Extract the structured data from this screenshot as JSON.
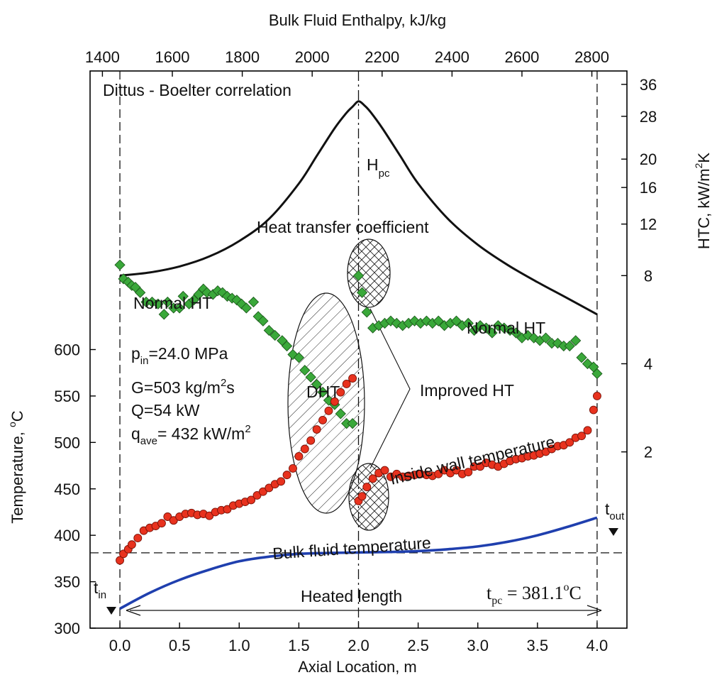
{
  "chart_data": {
    "type": "scatter",
    "x_axis": {
      "title": "Axial Location, m",
      "range": [
        -0.25,
        4.25
      ],
      "ticks": [
        0.0,
        0.5,
        1.0,
        1.5,
        2.0,
        2.5,
        3.0,
        3.5,
        4.0
      ],
      "tick_labels": [
        "0.0",
        "0.5",
        "1.0",
        "1.5",
        "2.0",
        "2.5",
        "3.0",
        "3.5",
        "4.0"
      ]
    },
    "top_axis": {
      "title": "Bulk Fluid Enthalpy, kJ/kg",
      "ticks": [
        1400,
        1600,
        1800,
        2000,
        2200,
        2400,
        2600,
        2800
      ],
      "tick_labels": [
        "1400",
        "1600",
        "1800",
        "2000",
        "2200",
        "2400",
        "2600",
        "2800"
      ],
      "enthalpy_at_x0": 1450,
      "enthalpy_at_x4": 2815
    },
    "y_left": {
      "title_main": "Temperature, ",
      "title_sup": "o",
      "title_unit": "C",
      "range": [
        300,
        900
      ],
      "ticks": [
        300,
        350,
        400,
        450,
        500,
        550,
        600
      ],
      "tick_labels": [
        "300",
        "350",
        "400",
        "450",
        "500",
        "550",
        "600"
      ]
    },
    "y_right": {
      "title_main": "HTC, kW/m",
      "title_sup": "2",
      "title_unit": "K",
      "scale": "log",
      "range": [
        0.5,
        40
      ],
      "ticks": [
        2,
        4,
        8,
        12,
        16,
        20,
        28,
        36
      ],
      "tick_labels": [
        "2",
        "4",
        "8",
        "12",
        "16",
        "20",
        "28",
        "36"
      ]
    },
    "series": [
      {
        "kind": "htc_points",
        "axis": "right",
        "color": "#3aa83a",
        "x": [
          0.0,
          0.03,
          0.07,
          0.1,
          0.13,
          0.17,
          0.22,
          0.27,
          0.32,
          0.37,
          0.4,
          0.45,
          0.5,
          0.53,
          0.58,
          0.62,
          0.66,
          0.7,
          0.73,
          0.78,
          0.82,
          0.86,
          0.9,
          0.94,
          0.98,
          1.02,
          1.06,
          1.12,
          1.16,
          1.2,
          1.25,
          1.3,
          1.36,
          1.4,
          1.45,
          1.5,
          1.55,
          1.6,
          1.65,
          1.7,
          1.75,
          1.8,
          1.85,
          1.9,
          1.95,
          2.0,
          2.03,
          2.07,
          2.12,
          2.17,
          2.22,
          2.27,
          2.32,
          2.37,
          2.42,
          2.47,
          2.52,
          2.57,
          2.62,
          2.67,
          2.72,
          2.77,
          2.82,
          2.87,
          2.92,
          2.97,
          3.02,
          3.07,
          3.12,
          3.17,
          3.22,
          3.27,
          3.32,
          3.37,
          3.42,
          3.47,
          3.52,
          3.57,
          3.62,
          3.67,
          3.72,
          3.77,
          3.82,
          3.87,
          3.92,
          3.97,
          4.0
        ],
        "y": [
          8.7,
          7.8,
          7.6,
          7.4,
          7.3,
          7.0,
          6.5,
          6.5,
          6.4,
          5.9,
          6.5,
          6.2,
          6.2,
          6.8,
          6.4,
          6.6,
          6.9,
          7.2,
          7.0,
          6.9,
          7.1,
          7.0,
          6.8,
          6.7,
          6.6,
          6.4,
          6.2,
          6.5,
          5.8,
          5.6,
          5.2,
          5.0,
          4.8,
          4.6,
          4.3,
          4.2,
          3.8,
          3.6,
          3.4,
          3.2,
          3.0,
          2.9,
          2.7,
          2.5,
          2.5,
          8.0,
          7.0,
          6.0,
          5.3,
          5.4,
          5.5,
          5.6,
          5.5,
          5.4,
          5.5,
          5.6,
          5.5,
          5.6,
          5.5,
          5.6,
          5.4,
          5.5,
          5.6,
          5.4,
          5.5,
          5.2,
          5.4,
          5.3,
          5.1,
          5.4,
          5.3,
          5.2,
          5.1,
          4.9,
          5.0,
          4.9,
          4.8,
          4.9,
          4.7,
          4.7,
          4.6,
          4.6,
          4.8,
          4.2,
          4.0,
          3.9,
          3.7
        ]
      },
      {
        "kind": "wall_temperature_points",
        "axis": "left",
        "color": "#e8321e",
        "x": [
          0.0,
          0.03,
          0.07,
          0.1,
          0.15,
          0.2,
          0.25,
          0.3,
          0.35,
          0.4,
          0.45,
          0.5,
          0.55,
          0.6,
          0.65,
          0.7,
          0.75,
          0.8,
          0.85,
          0.9,
          0.95,
          1.0,
          1.05,
          1.1,
          1.15,
          1.2,
          1.25,
          1.3,
          1.35,
          1.4,
          1.45,
          1.5,
          1.55,
          1.6,
          1.65,
          1.7,
          1.75,
          1.8,
          1.85,
          1.9,
          1.95,
          2.0,
          2.03,
          2.07,
          2.12,
          2.17,
          2.22,
          2.27,
          2.32,
          2.37,
          2.42,
          2.47,
          2.52,
          2.57,
          2.62,
          2.67,
          2.72,
          2.77,
          2.82,
          2.87,
          2.92,
          2.97,
          3.02,
          3.07,
          3.12,
          3.17,
          3.22,
          3.27,
          3.32,
          3.37,
          3.42,
          3.47,
          3.52,
          3.57,
          3.62,
          3.67,
          3.72,
          3.77,
          3.82,
          3.87,
          3.92,
          3.97,
          4.0
        ],
        "y": [
          373,
          380,
          385,
          390,
          397,
          405,
          408,
          410,
          413,
          420,
          416,
          420,
          423,
          424,
          422,
          423,
          421,
          425,
          427,
          428,
          432,
          434,
          436,
          438,
          443,
          447,
          451,
          455,
          458,
          465,
          472,
          485,
          493,
          502,
          514,
          524,
          534,
          544,
          554,
          563,
          569,
          437,
          442,
          452,
          461,
          467,
          470,
          463,
          466,
          463,
          464,
          465,
          466,
          465,
          464,
          466,
          470,
          467,
          470,
          466,
          468,
          474,
          474,
          478,
          476,
          474,
          477,
          480,
          482,
          483,
          485,
          486,
          488,
          490,
          493,
          496,
          497,
          500,
          505,
          507,
          513,
          535,
          550
        ]
      },
      {
        "kind": "bulk_fluid_temperature_line",
        "axis": "left",
        "color": "#1f3fae",
        "x": [
          0.0,
          0.25,
          0.5,
          0.75,
          1.0,
          1.25,
          1.5,
          1.75,
          2.0,
          2.25,
          2.5,
          2.75,
          3.0,
          3.25,
          3.5,
          3.75,
          4.0
        ],
        "y": [
          321,
          338,
          352,
          363,
          372,
          377,
          380,
          381,
          381.5,
          382,
          383,
          385,
          388,
          393,
          400,
          409,
          419
        ]
      },
      {
        "kind": "dittus_boelter_htc_line",
        "axis": "right",
        "color": "#111111",
        "x": [
          0.0,
          0.25,
          0.5,
          0.75,
          1.0,
          1.25,
          1.5,
          1.65,
          1.8,
          1.9,
          1.95,
          2.0,
          2.05,
          2.1,
          2.2,
          2.35,
          2.5,
          2.75,
          3.0,
          3.25,
          3.5,
          3.75,
          4.0
        ],
        "y": [
          8.0,
          8.2,
          8.6,
          9.3,
          10.5,
          12.5,
          16.5,
          20.5,
          25.5,
          28.8,
          30.2,
          31.5,
          30.5,
          29.0,
          25.5,
          20.5,
          16.5,
          12.5,
          10.2,
          8.7,
          7.6,
          6.7,
          5.9
        ]
      }
    ],
    "reference_lines": {
      "vertical_dashed_x": [
        0.0,
        4.0
      ],
      "vertical_dashdot_x": 2.0,
      "horizontal_dashed_y": 381.1
    },
    "annotations": {
      "dittus": "Dittus - Boelter correlation",
      "hpc_main": "H",
      "hpc_sub": "pc",
      "htc_label": "Heat transfer coefficient",
      "normal_ht_left": "Normal HT",
      "normal_ht_right": "Normal HT",
      "dht": "DHT",
      "improved_ht": "Improved HT",
      "pin_main": "p",
      "pin_sub": "in",
      "pin_value": "=24.0 MPa",
      "g_main": "G=503 kg/m",
      "g_sup": "2",
      "g_tail": "s",
      "q_line": "Q=54 kW",
      "qave_main": "q",
      "qave_sub": "ave",
      "qave_value": "= 432 kW/m",
      "qave_sup": "2",
      "wall_temp": "Inside wall temperature",
      "bulk_temp": "Bulk fluid temperature",
      "heated_length": "Heated length",
      "tin_main": "t",
      "tin_sub": "in",
      "tout_main": "t",
      "tout_sub": "out",
      "tpc_main": "t",
      "tpc_sub": "pc",
      "tpc_value": " = 381.1",
      "tpc_sup": "o",
      "tpc_unit": "C"
    }
  }
}
